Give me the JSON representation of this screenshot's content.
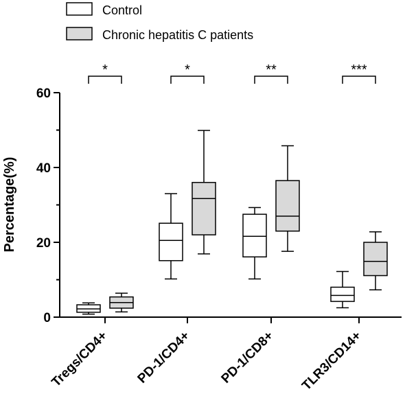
{
  "chart_data": {
    "type": "boxplot",
    "ylabel": "Percentage(%)",
    "ylim": [
      0,
      60
    ],
    "yticks": [
      0,
      20,
      40,
      60
    ],
    "categories": [
      "Tregs/CD4+",
      "PD-1/CD4+",
      "PD-1/CD8+",
      "TLR3/CD14+"
    ],
    "legend_position": "top-left",
    "series": [
      {
        "name": "Control",
        "color": "#ffffff",
        "boxes": [
          {
            "min": 0.8,
            "q1": 1.3,
            "median": 2.2,
            "q3": 3.3,
            "max": 3.8
          },
          {
            "min": 10.2,
            "q1": 15.1,
            "median": 20.5,
            "q3": 25.1,
            "max": 33.0
          },
          {
            "min": 10.2,
            "q1": 16.1,
            "median": 21.6,
            "q3": 27.5,
            "max": 29.3
          },
          {
            "min": 2.5,
            "q1": 4.2,
            "median": 5.8,
            "q3": 8.0,
            "max": 12.2
          }
        ]
      },
      {
        "name": "Chronic hepatitis C patients",
        "color": "#d9d9d9",
        "boxes": [
          {
            "min": 1.4,
            "q1": 2.4,
            "median": 3.9,
            "q3": 5.4,
            "max": 6.4
          },
          {
            "min": 16.9,
            "q1": 22.0,
            "median": 31.7,
            "q3": 36.0,
            "max": 49.9
          },
          {
            "min": 17.6,
            "q1": 23.0,
            "median": 27.0,
            "q3": 36.5,
            "max": 45.8
          },
          {
            "min": 7.3,
            "q1": 11.1,
            "median": 14.9,
            "q3": 20.0,
            "max": 22.8
          }
        ]
      }
    ],
    "significance": [
      "*",
      "*",
      "**",
      "***"
    ]
  }
}
